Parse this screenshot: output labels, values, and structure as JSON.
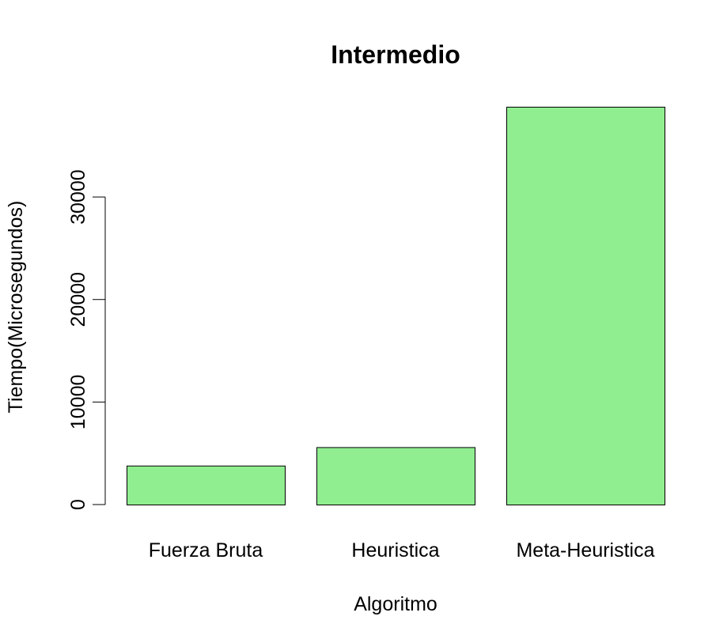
{
  "chart_data": {
    "type": "bar",
    "title": "Intermedio",
    "xlabel": "Algoritmo",
    "ylabel": "Tiempo(Microsegundos)",
    "categories": [
      "Fuerza Bruta",
      "Heuristica",
      "Meta-Heuristica"
    ],
    "values": [
      3800,
      5600,
      38800
    ],
    "ylim": [
      0,
      38800
    ],
    "yticks": [
      0,
      10000,
      20000,
      30000
    ],
    "ytick_labels": [
      "0",
      "10000",
      "20000",
      "30000"
    ],
    "bar_color": "#90ee90",
    "bar_border_color": "#000000",
    "grid": false,
    "legend": "none"
  }
}
